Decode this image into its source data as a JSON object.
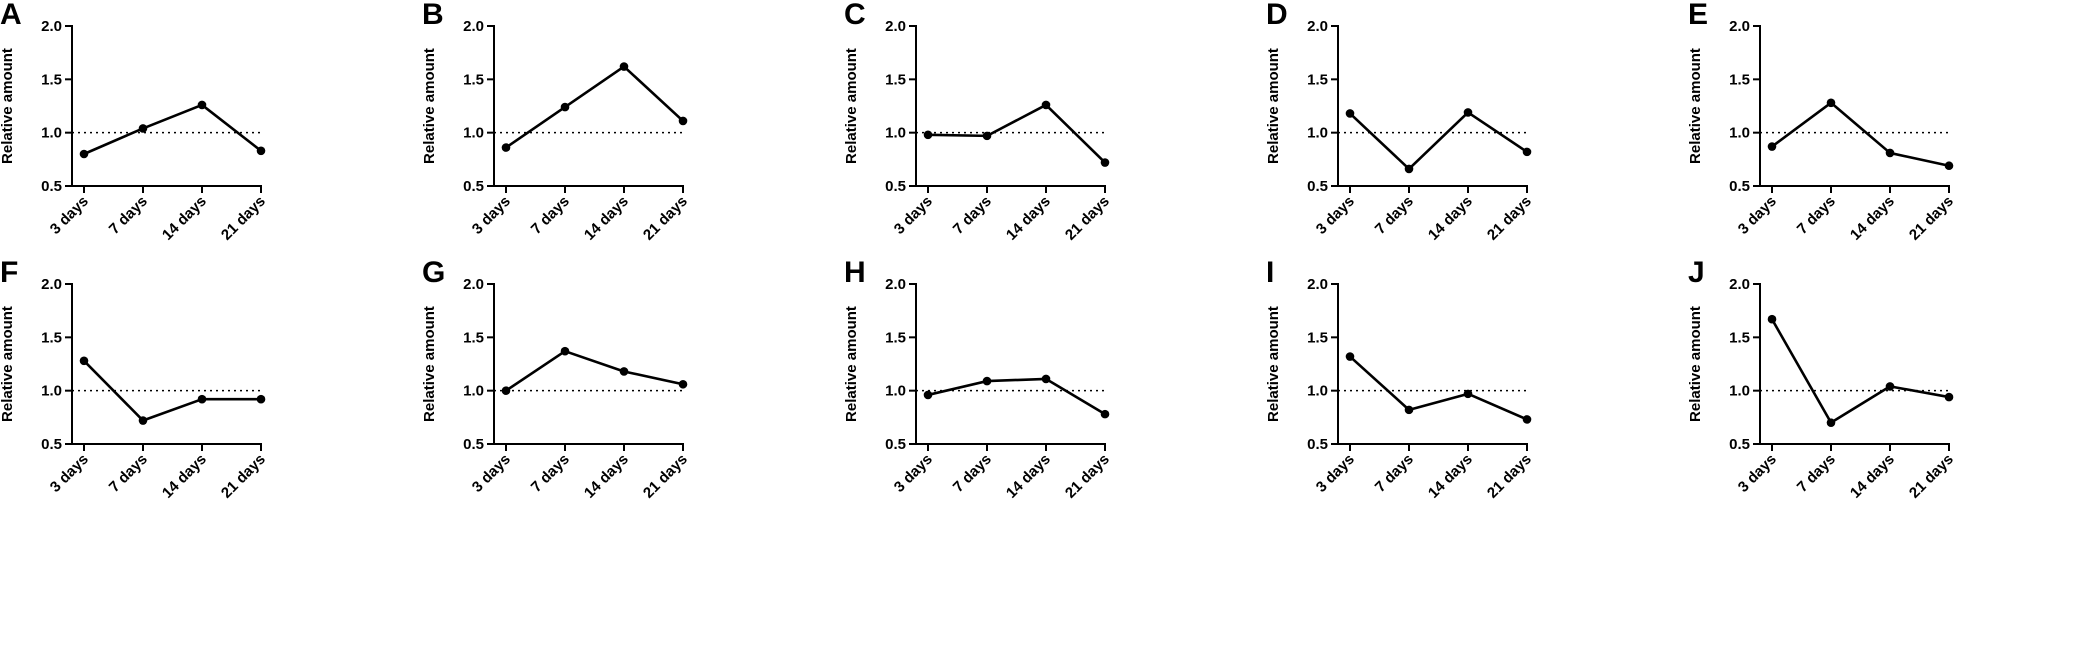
{
  "chart_data": [
    {
      "panel": "A",
      "type": "line",
      "categories": [
        "3 days",
        "7 days",
        "14 days",
        "21 days"
      ],
      "values": [
        0.8,
        1.04,
        1.26,
        0.83
      ],
      "xlabel": "",
      "ylabel": "Relative amount",
      "ylim": [
        0.5,
        2.0
      ],
      "yticks": [
        "0.5",
        "1.0",
        "1.5",
        "2.0"
      ],
      "reference_line": 1.0,
      "reference_style": "dotted"
    },
    {
      "panel": "B",
      "type": "line",
      "categories": [
        "3 days",
        "7 days",
        "14 days",
        "21 days"
      ],
      "values": [
        0.86,
        1.24,
        1.62,
        1.11
      ],
      "xlabel": "",
      "ylabel": "Relative amount",
      "ylim": [
        0.5,
        2.0
      ],
      "yticks": [
        "0.5",
        "1.0",
        "1.5",
        "2.0"
      ],
      "reference_line": 1.0,
      "reference_style": "dotted"
    },
    {
      "panel": "C",
      "type": "line",
      "categories": [
        "3 days",
        "7 days",
        "14 days",
        "21 days"
      ],
      "values": [
        0.98,
        0.97,
        1.26,
        0.72
      ],
      "xlabel": "",
      "ylabel": "Relative amount",
      "ylim": [
        0.5,
        2.0
      ],
      "yticks": [
        "0.5",
        "1.0",
        "1.5",
        "2.0"
      ],
      "reference_line": 1.0,
      "reference_style": "dotted"
    },
    {
      "panel": "D",
      "type": "line",
      "categories": [
        "3 days",
        "7 days",
        "14 days",
        "21 days"
      ],
      "values": [
        1.18,
        0.66,
        1.19,
        0.82
      ],
      "xlabel": "",
      "ylabel": "Relative amount",
      "ylim": [
        0.5,
        2.0
      ],
      "yticks": [
        "0.5",
        "1.0",
        "1.5",
        "2.0"
      ],
      "reference_line": 1.0,
      "reference_style": "dotted"
    },
    {
      "panel": "E",
      "type": "line",
      "categories": [
        "3 days",
        "7 days",
        "14 days",
        "21 days"
      ],
      "values": [
        0.87,
        1.28,
        0.81,
        0.69
      ],
      "xlabel": "",
      "ylabel": "Relative amount",
      "ylim": [
        0.5,
        2.0
      ],
      "yticks": [
        "0.5",
        "1.0",
        "1.5",
        "2.0"
      ],
      "reference_line": 1.0,
      "reference_style": "dotted"
    },
    {
      "panel": "F",
      "type": "line",
      "categories": [
        "3 days",
        "7 days",
        "14 days",
        "21 days"
      ],
      "values": [
        1.28,
        0.72,
        0.92,
        0.92
      ],
      "xlabel": "",
      "ylabel": "Relative amount",
      "ylim": [
        0.5,
        2.0
      ],
      "yticks": [
        "0.5",
        "1.0",
        "1.5",
        "2.0"
      ],
      "reference_line": 1.0,
      "reference_style": "dotted"
    },
    {
      "panel": "G",
      "type": "line",
      "categories": [
        "3 days",
        "7 days",
        "14 days",
        "21 days"
      ],
      "values": [
        1.0,
        1.37,
        1.18,
        1.06
      ],
      "xlabel": "",
      "ylabel": "Relative amount",
      "ylim": [
        0.5,
        2.0
      ],
      "yticks": [
        "0.5",
        "1.0",
        "1.5",
        "2.0"
      ],
      "reference_line": 1.0,
      "reference_style": "dotted"
    },
    {
      "panel": "H",
      "type": "line",
      "categories": [
        "3 days",
        "7 days",
        "14 days",
        "21 days"
      ],
      "values": [
        0.96,
        1.09,
        1.11,
        0.78
      ],
      "xlabel": "",
      "ylabel": "Relative amount",
      "ylim": [
        0.5,
        2.0
      ],
      "yticks": [
        "0.5",
        "1.0",
        "1.5",
        "2.0"
      ],
      "reference_line": 1.0,
      "reference_style": "dotted"
    },
    {
      "panel": "I",
      "type": "line",
      "categories": [
        "3 days",
        "7 days",
        "14 days",
        "21 days"
      ],
      "values": [
        1.32,
        0.82,
        0.97,
        0.73
      ],
      "xlabel": "",
      "ylabel": "Relative amount",
      "ylim": [
        0.5,
        2.0
      ],
      "yticks": [
        "0.5",
        "1.0",
        "1.5",
        "2.0"
      ],
      "reference_line": 1.0,
      "reference_style": "dotted"
    },
    {
      "panel": "J",
      "type": "line",
      "categories": [
        "3 days",
        "7 days",
        "14 days",
        "21 days"
      ],
      "values": [
        1.67,
        0.7,
        1.04,
        0.94
      ],
      "xlabel": "",
      "ylabel": "Relative amount",
      "ylim": [
        0.5,
        2.0
      ],
      "yticks": [
        "0.5",
        "1.0",
        "1.5",
        "2.0"
      ],
      "reference_line": 1.0,
      "reference_style": "dotted"
    }
  ]
}
